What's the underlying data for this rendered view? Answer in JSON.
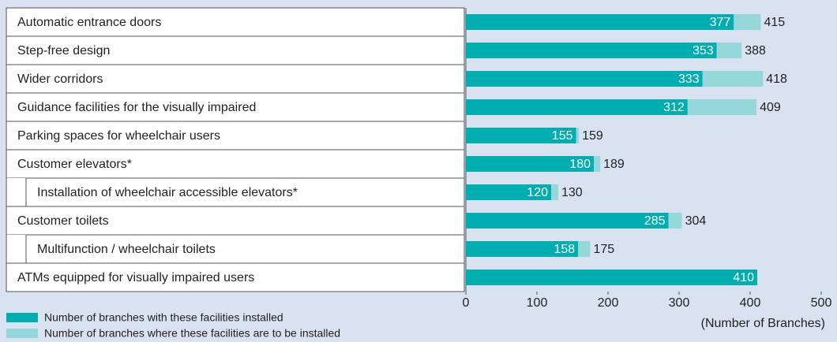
{
  "chart_data": {
    "type": "bar",
    "orientation": "horizontal",
    "stacked": true,
    "categories": [
      "Automatic entrance doors",
      "Step-free design",
      "Wider corridors",
      "Guidance facilities for the visually impaired",
      "Parking spaces for wheelchair users",
      "Customer elevators*",
      "Installation of wheelchair accessible elevators*",
      "Customer toilets",
      "Multifunction / wheelchair toilets",
      "ATMs equipped for visually impaired users"
    ],
    "series": [
      {
        "name": "Number of branches with these facilities installed",
        "color": "#00adb0",
        "values": [
          377,
          353,
          333,
          312,
          155,
          180,
          120,
          285,
          158,
          410
        ]
      },
      {
        "name": "Number of branches where these facilities are to be installed",
        "color": "#95d8dc",
        "values": [
          38,
          35,
          85,
          97,
          4,
          9,
          10,
          19,
          17,
          null
        ]
      }
    ],
    "totals": [
      415,
      388,
      418,
      409,
      159,
      189,
      130,
      304,
      175,
      null
    ],
    "xlim": [
      0,
      500
    ],
    "xticks": [
      0,
      100,
      200,
      300,
      400,
      500
    ],
    "xlabel": "(Number of Branches)"
  }
}
